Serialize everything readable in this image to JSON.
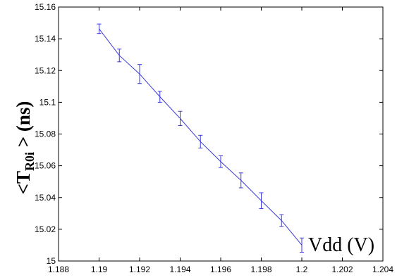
{
  "chart_data": {
    "type": "line",
    "title": "",
    "xlabel": "Vdd (V)",
    "ylabel": {
      "prefix": "<T",
      "subscript": "R0i",
      "suffix": " >  (ns)"
    },
    "xlim": [
      1.188,
      1.204
    ],
    "ylim": [
      15.0,
      15.16
    ],
    "xticks": [
      "1.188",
      "1.19",
      "1.192",
      "1.194",
      "1.196",
      "1.198",
      "1.2",
      "1.202",
      "1.204"
    ],
    "yticks": [
      "15",
      "15.02",
      "15.04",
      "15.06",
      "15.08",
      "15.1",
      "15.12",
      "15.14",
      "15.16"
    ],
    "grid": false,
    "series": [
      {
        "color": "#3a3ad8",
        "x": [
          1.19,
          1.191,
          1.192,
          1.193,
          1.194,
          1.195,
          1.196,
          1.197,
          1.198,
          1.199,
          1.2
        ],
        "y": [
          15.1463,
          15.1295,
          15.1178,
          15.1035,
          15.0898,
          15.0752,
          15.0626,
          15.0508,
          15.038,
          15.0255,
          15.01
        ],
        "err": [
          0.003,
          0.004,
          0.006,
          0.0035,
          0.0045,
          0.004,
          0.0037,
          0.0047,
          0.005,
          0.0037,
          0.0045
        ]
      }
    ]
  }
}
